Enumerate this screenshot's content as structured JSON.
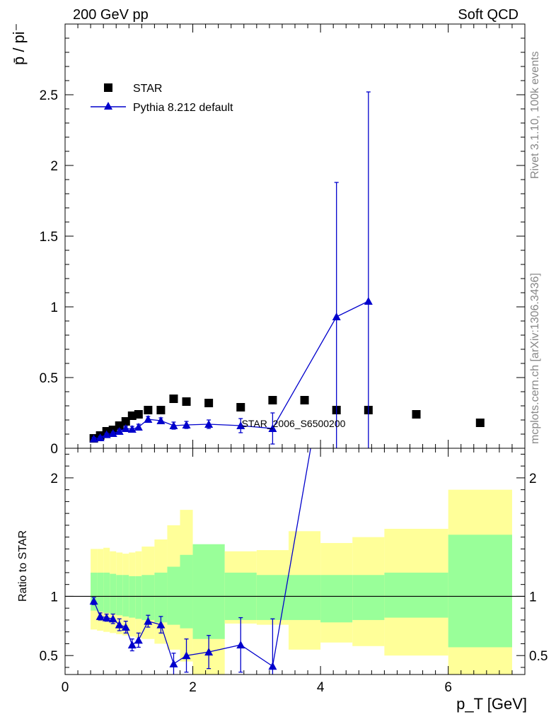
{
  "header": {
    "left": "200 GeV pp",
    "right": "Soft QCD"
  },
  "side_labels": {
    "rivet": "Rivet 3.1.10,  100k events",
    "mcplots": "mcplots.cern.ch [arXiv:1306.3436]"
  },
  "watermark": "STAR_2006_S6500200",
  "chart_data": [
    {
      "type": "scatter",
      "panel": "main",
      "ylabel": "p̄ / pi⁻",
      "xlim": [
        0,
        7.2
      ],
      "ylim": [
        0,
        3.0
      ],
      "yticks": [
        "0",
        "0.5",
        "1",
        "1.5",
        "2",
        "2.5"
      ],
      "grid": false,
      "legend_position": "top-left",
      "series": [
        {
          "name": "STAR",
          "marker": "square",
          "color": "#000000",
          "x": [
            0.45,
            0.55,
            0.65,
            0.75,
            0.85,
            0.95,
            1.05,
            1.15,
            1.3,
            1.5,
            1.7,
            1.9,
            2.25,
            2.75,
            3.25,
            3.75,
            4.25,
            4.75,
            5.5,
            6.5
          ],
          "y": [
            0.07,
            0.09,
            0.12,
            0.13,
            0.16,
            0.19,
            0.23,
            0.24,
            0.27,
            0.27,
            0.35,
            0.33,
            0.32,
            0.29,
            0.34,
            0.34,
            0.27,
            0.27,
            0.24,
            0.18
          ]
        },
        {
          "name": "Pythia 8.212 default",
          "marker": "triangle",
          "color": "#0000cc",
          "x": [
            0.45,
            0.55,
            0.65,
            0.75,
            0.85,
            0.95,
            1.05,
            1.15,
            1.3,
            1.5,
            1.7,
            1.9,
            2.25,
            2.75,
            3.25,
            4.25,
            4.75
          ],
          "y": [
            0.067,
            0.075,
            0.097,
            0.105,
            0.12,
            0.14,
            0.135,
            0.15,
            0.205,
            0.195,
            0.16,
            0.165,
            0.17,
            0.16,
            0.14,
            0.93,
            1.04
          ],
          "yerr": [
            0.01,
            0.01,
            0.01,
            0.01,
            0.015,
            0.015,
            0.02,
            0.02,
            0.02,
            0.02,
            0.025,
            0.025,
            0.03,
            0.05,
            0.11,
            0.95,
            1.48
          ]
        }
      ]
    },
    {
      "type": "line",
      "panel": "ratio",
      "ylabel": "Ratio to STAR",
      "xlabel": "p_T [GeV]",
      "xlim": [
        0,
        7.2
      ],
      "ylim": [
        0.34,
        2.25
      ],
      "xticks": [
        "0",
        "2",
        "4",
        "6"
      ],
      "yticks": [
        "0.5",
        "1",
        "2"
      ],
      "reference": 1,
      "bands": {
        "edges": [
          0.4,
          0.5,
          0.6,
          0.7,
          0.8,
          0.9,
          1.0,
          1.1,
          1.2,
          1.4,
          1.6,
          1.8,
          2.0,
          2.5,
          3.0,
          3.5,
          4.0,
          4.5,
          5.0,
          6.0,
          7.0
        ],
        "stat_lo": [
          0.88,
          0.87,
          0.86,
          0.85,
          0.84,
          0.83,
          0.82,
          0.81,
          0.8,
          0.78,
          0.76,
          0.73,
          0.64,
          0.8,
          0.8,
          0.8,
          0.78,
          0.8,
          0.82,
          0.57
        ],
        "stat_hi": [
          1.2,
          1.2,
          1.2,
          1.19,
          1.18,
          1.18,
          1.17,
          1.17,
          1.18,
          1.2,
          1.25,
          1.35,
          1.44,
          1.2,
          1.18,
          1.18,
          1.18,
          1.18,
          1.2,
          1.52
        ],
        "sys_lo": [
          0.72,
          0.71,
          0.7,
          0.69,
          0.68,
          0.67,
          0.66,
          0.65,
          0.64,
          0.6,
          0.55,
          0.45,
          0.34,
          0.77,
          0.76,
          0.55,
          0.61,
          0.58,
          0.5,
          0.34
        ],
        "sys_hi": [
          1.4,
          1.4,
          1.41,
          1.38,
          1.37,
          1.36,
          1.37,
          1.38,
          1.42,
          1.48,
          1.6,
          1.73,
          1.38,
          1.38,
          1.39,
          1.55,
          1.45,
          1.5,
          1.57,
          1.9
        ],
        "stat_color": "#99ff99",
        "sys_color": "#ffff99"
      },
      "series": [
        {
          "name": "Pythia 8.212 default",
          "color": "#0000cc",
          "x": [
            0.45,
            0.55,
            0.65,
            0.75,
            0.85,
            0.95,
            1.05,
            1.15,
            1.3,
            1.5,
            1.7,
            1.9,
            2.25,
            2.75,
            3.25,
            4.25
          ],
          "y": [
            0.96,
            0.83,
            0.82,
            0.81,
            0.76,
            0.74,
            0.59,
            0.63,
            0.79,
            0.76,
            0.43,
            0.5,
            0.53,
            0.59,
            0.41,
            3.5
          ],
          "yerr": [
            0.03,
            0.03,
            0.03,
            0.04,
            0.05,
            0.05,
            0.05,
            0.06,
            0.05,
            0.07,
            0.09,
            0.14,
            0.14,
            0.23,
            0.4,
            0
          ]
        }
      ]
    }
  ]
}
